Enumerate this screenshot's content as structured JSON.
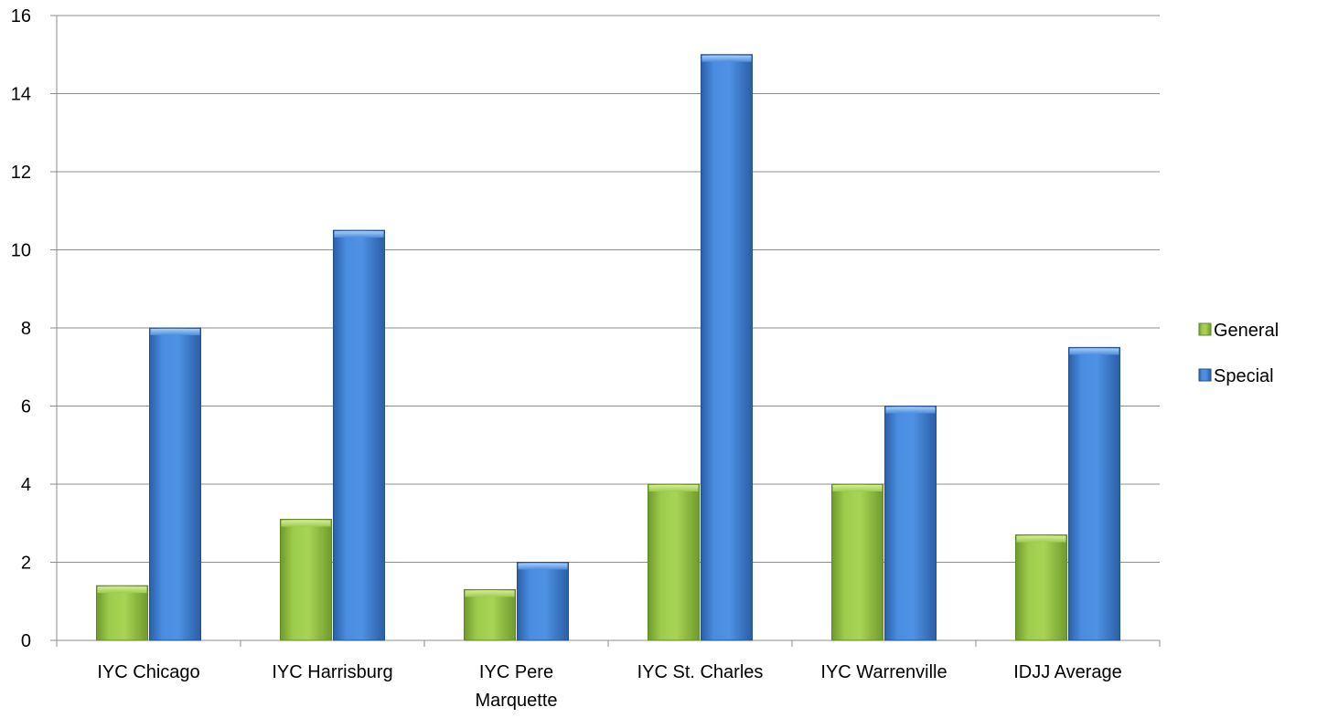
{
  "chart_data": {
    "type": "bar",
    "title": "",
    "xlabel": "",
    "ylabel": "",
    "categories": [
      [
        "IYC Chicago"
      ],
      [
        "IYC Harrisburg"
      ],
      [
        "IYC Pere",
        "Marquette"
      ],
      [
        "IYC St. Charles"
      ],
      [
        "IYC Warrenville"
      ],
      [
        "IDJJ Average"
      ]
    ],
    "series": [
      {
        "name": "General",
        "values": [
          1.4,
          3.1,
          1.3,
          4,
          4,
          2.7
        ],
        "color": "#8cc63f"
      },
      {
        "name": "Special",
        "values": [
          8,
          10.5,
          2,
          15,
          6,
          7.5
        ],
        "color": "#3a7cd2"
      }
    ],
    "ylim": [
      0,
      16
    ],
    "yticks": [
      0,
      2,
      4,
      6,
      8,
      10,
      12,
      14,
      16
    ],
    "grid": true,
    "legend": "right"
  }
}
